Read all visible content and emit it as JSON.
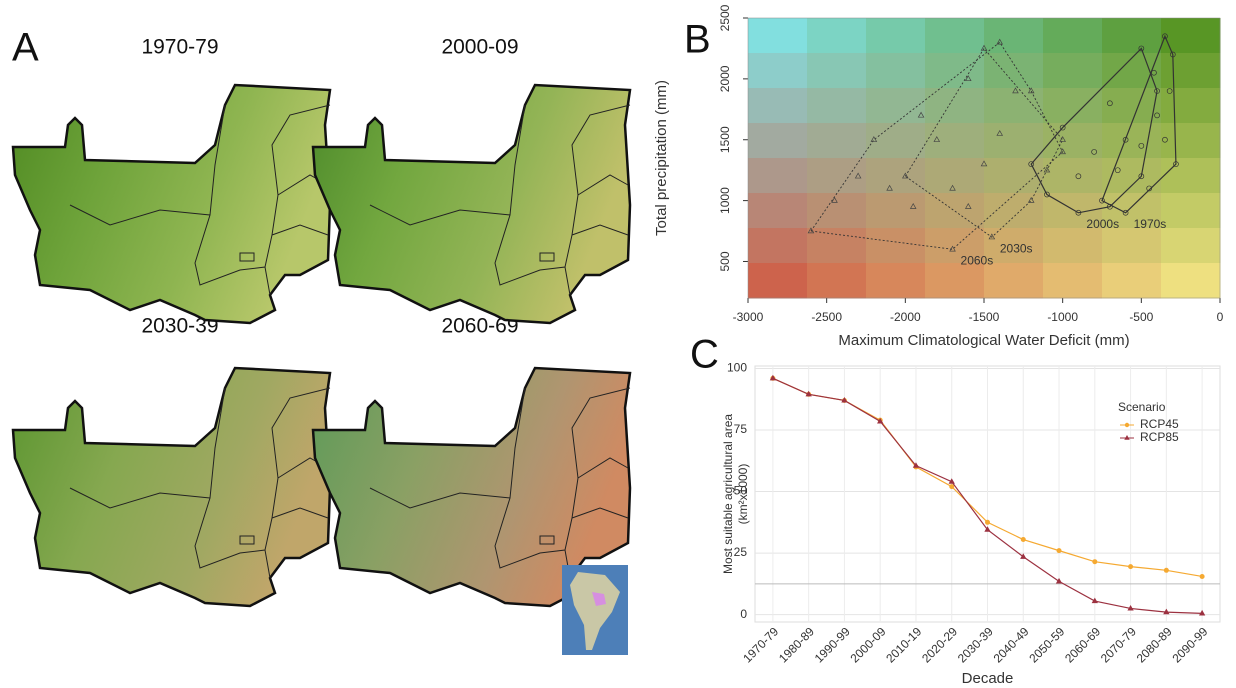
{
  "panel_labels": [
    "A",
    "B",
    "C"
  ],
  "maps": [
    "1970-79",
    "2000-09",
    "2030-39",
    "2060-69"
  ],
  "chart_data": [
    {
      "type": "scatter",
      "xlabel": "Maximum Climatological Water Deficit (mm)",
      "ylabel": "Total precipitation (mm)",
      "xlim": [
        -3000,
        0
      ],
      "xticks": [
        -3000,
        -2500,
        -2000,
        -1500,
        -1000,
        -500,
        0
      ],
      "ylim": [
        200,
        2500
      ],
      "yticks": [
        500,
        1000,
        1500,
        2000,
        2500
      ],
      "series": [
        {
          "name": "1970s",
          "marker": "circle",
          "line": "solid",
          "x": [
            -350,
            -300,
            -320,
            -400,
            -500,
            -650,
            -750,
            -600,
            -450,
            -350,
            -280,
            -420
          ],
          "y": [
            2350,
            2200,
            1900,
            1700,
            1450,
            1250,
            1000,
            900,
            1100,
            1500,
            1300,
            2050
          ]
        },
        {
          "name": "2000s",
          "marker": "circle",
          "line": "solid",
          "x": [
            -1100,
            -900,
            -700,
            -500,
            -600,
            -800,
            -1000,
            -400,
            -700,
            -1200,
            -900,
            -500
          ],
          "y": [
            1050,
            900,
            950,
            1200,
            1500,
            1400,
            1600,
            1900,
            1800,
            1300,
            1200,
            2250
          ]
        },
        {
          "name": "2030s",
          "marker": "triangle",
          "line": "dotted",
          "x": [
            -1600,
            -1450,
            -1200,
            -1000,
            -1300,
            -1500,
            -1800,
            -2000,
            -1700,
            -1100,
            -1400
          ],
          "y": [
            950,
            700,
            1000,
            1500,
            1900,
            2250,
            1500,
            1200,
            1100,
            1250,
            1550
          ]
        },
        {
          "name": "2060s",
          "marker": "triangle",
          "line": "dotted",
          "x": [
            -2600,
            -2450,
            -2300,
            -2100,
            -1950,
            -1700,
            -2200,
            -1900,
            -1600,
            -1400,
            -1200,
            -1500,
            -1000
          ],
          "y": [
            750,
            1000,
            1200,
            1100,
            950,
            600,
            1500,
            1700,
            2000,
            2300,
            1900,
            1300,
            1400
          ]
        }
      ]
    },
    {
      "type": "line",
      "xlabel": "Decade",
      "ylabel": [
        "Most suitable agricultural area",
        "(km²x1000)"
      ],
      "legend_title": "Scenario",
      "legend": "right",
      "categories": [
        "1970-79",
        "1980-89",
        "1990-99",
        "2000-09",
        "2010-19",
        "2020-29",
        "2030-39",
        "2040-49",
        "2050-59",
        "2060-69",
        "2070-79",
        "2080-89",
        "2090-99"
      ],
      "ylim": [
        -3,
        101
      ],
      "yticks": [
        0,
        25,
        50,
        75,
        100
      ],
      "grid": true,
      "hline": 12.5,
      "series": [
        {
          "name": "RCP45",
          "color": "#f5a931",
          "marker": "circle",
          "values": [
            96,
            89.5,
            87,
            79,
            60,
            52,
            37.5,
            30.5,
            26,
            21.5,
            19.5,
            18,
            15.5
          ]
        },
        {
          "name": "RCP85",
          "color": "#9c3140",
          "marker": "triangle",
          "values": [
            96,
            89.5,
            87,
            78.5,
            60.5,
            54,
            34.5,
            23.5,
            13.5,
            5.5,
            2.5,
            1,
            0.5
          ]
        }
      ]
    }
  ]
}
